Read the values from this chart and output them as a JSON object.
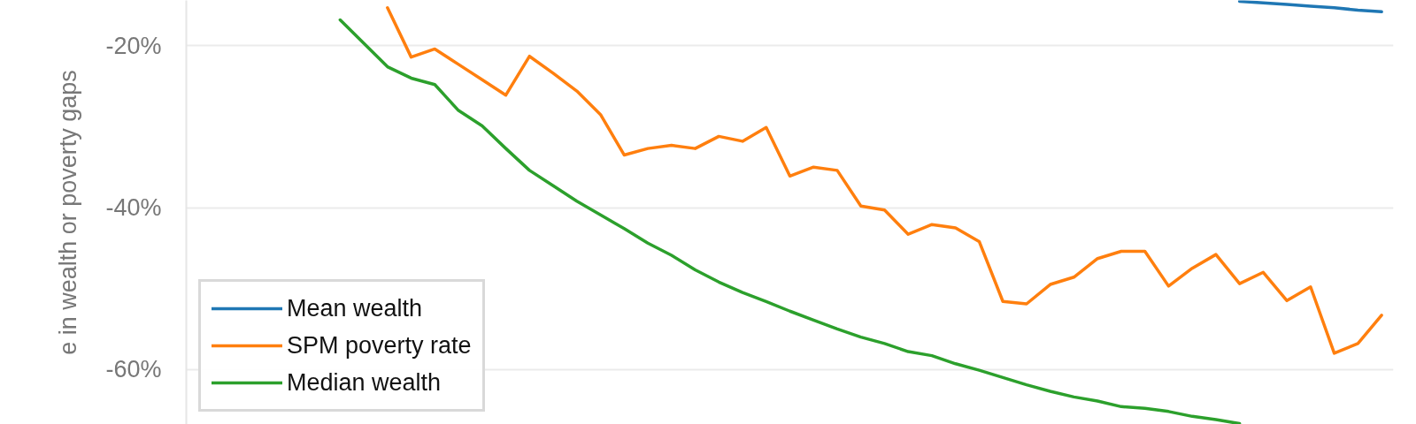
{
  "chart_data": {
    "type": "line",
    "ylabel": "e in wealth or poverty gaps",
    "categories": [
      null,
      null,
      null,
      null,
      null,
      null,
      null,
      null,
      null,
      null,
      null,
      null,
      null,
      null,
      null,
      null,
      null,
      null,
      null,
      null,
      null,
      null,
      null,
      null,
      null,
      null,
      null,
      null,
      null,
      null,
      null,
      null,
      null,
      null,
      null,
      null,
      null,
      null,
      null,
      null,
      null,
      null,
      null,
      null,
      null,
      null,
      null,
      null,
      null,
      null,
      null
    ],
    "series": [
      {
        "name": "Mean wealth",
        "color": "#1f77b4",
        "values": [
          null,
          null,
          null,
          null,
          null,
          null,
          null,
          null,
          null,
          null,
          null,
          null,
          null,
          null,
          null,
          null,
          null,
          null,
          null,
          null,
          null,
          null,
          null,
          null,
          null,
          null,
          null,
          null,
          null,
          null,
          null,
          null,
          null,
          null,
          null,
          null,
          null,
          null,
          null,
          null,
          null,
          null,
          null,
          null,
          -14.5,
          -14.7,
          -14.9,
          -15.1,
          -15.3,
          -15.6,
          -15.8
        ]
      },
      {
        "name": "SPM poverty rate",
        "color": "#ff7f0e",
        "values": [
          null,
          null,
          null,
          null,
          null,
          null,
          null,
          null,
          -15.3,
          -21.4,
          -20.4,
          -22.3,
          -24.2,
          -26.1,
          -21.3,
          -23.4,
          -25.6,
          -28.5,
          -33.5,
          -32.7,
          -32.3,
          -32.7,
          -31.2,
          -31.8,
          -30.1,
          -36.1,
          -35.0,
          -35.4,
          -39.8,
          -40.3,
          -43.3,
          -42.1,
          -42.5,
          -44.2,
          -51.6,
          -51.9,
          -49.5,
          -48.6,
          -46.3,
          -45.4,
          -45.4,
          -49.7,
          -47.5,
          -45.8,
          -49.4,
          -48.0,
          -51.5,
          -49.8,
          -58.0,
          -56.8,
          -53.3
        ]
      },
      {
        "name": "Median wealth",
        "color": "#2ca02c",
        "values": [
          null,
          null,
          null,
          null,
          null,
          null,
          -16.8,
          -19.7,
          -22.6,
          -24.0,
          -24.8,
          -28.0,
          -29.9,
          -32.7,
          -35.4,
          -37.3,
          -39.2,
          -40.9,
          -42.6,
          -44.4,
          -45.9,
          -47.7,
          -49.2,
          -50.5,
          -51.6,
          -52.8,
          -53.9,
          -55.0,
          -56.0,
          -56.8,
          -57.8,
          -58.3,
          -59.3,
          -60.1,
          -61.0,
          -61.9,
          -62.7,
          -63.4,
          -63.9,
          -64.6,
          -64.8,
          -65.2,
          -65.8,
          -66.2,
          -66.7,
          null,
          null,
          null,
          null,
          null,
          null
        ]
      }
    ],
    "ylim": [
      -66.8,
      -14.4
    ],
    "yticks": [
      {
        "value": -20,
        "label": "-20%"
      },
      {
        "value": -40,
        "label": "-40%"
      },
      {
        "value": -60,
        "label": "-60%"
      }
    ],
    "tick_labels": "y",
    "grid": "y",
    "legend": "bottom left",
    "line_style": "solid",
    "marker": "none"
  }
}
